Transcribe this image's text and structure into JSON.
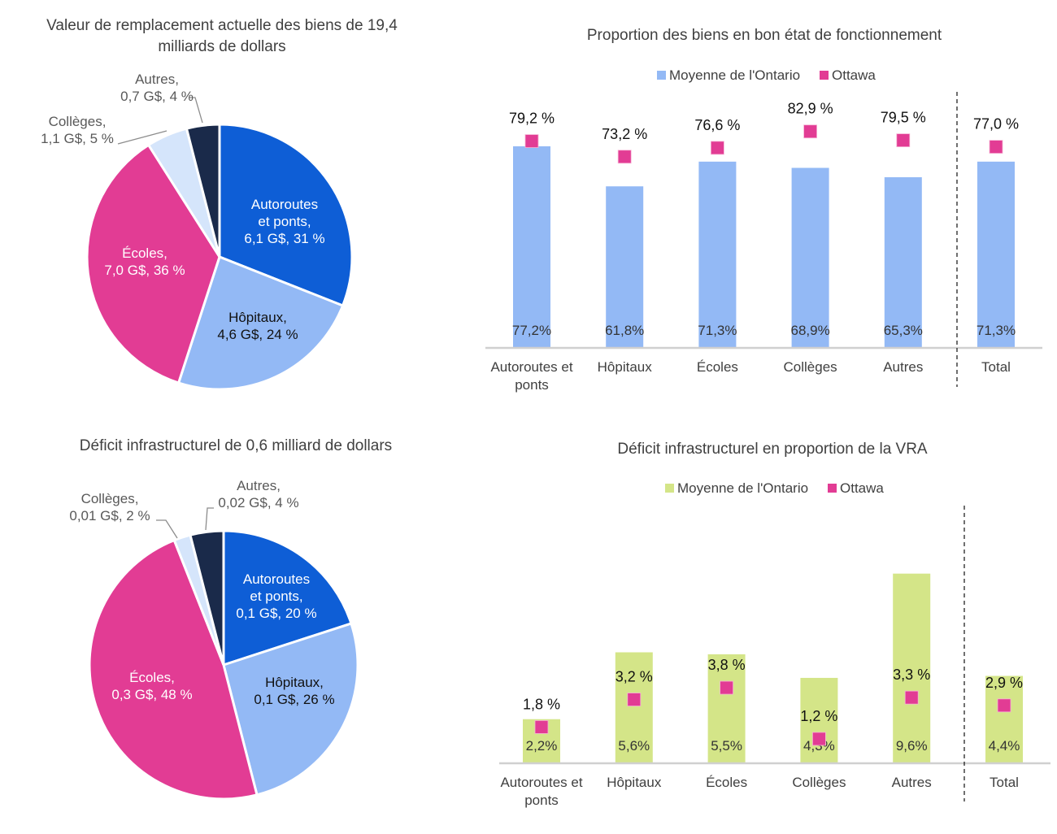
{
  "colors": {
    "autoroutes": "#0e5ed6",
    "hopitaux": "#93b9f5",
    "ecoles": "#e23c94",
    "colleges": "#d5e5fb",
    "autres": "#1a2a4a",
    "ontario_bar_1": "#93b9f5",
    "ontario_bar_2": "#d4e588",
    "ottawa": "#e23c94"
  },
  "chart_data": [
    {
      "type": "pie",
      "title_lines": [
        "Valeur de remplacement actuelle des biens de 19,4",
        "milliards de dollars"
      ],
      "slices": [
        {
          "key": "autoroutes",
          "value": 31,
          "label_lines": [
            "Autoroutes",
            "et ponts,",
            "6,1 G$, 31 %"
          ]
        },
        {
          "key": "hopitaux",
          "value": 24,
          "label_lines": [
            "Hôpitaux,",
            "4,6 G$, 24 %"
          ]
        },
        {
          "key": "ecoles",
          "value": 36,
          "label_lines": [
            "Écoles,",
            "7,0 G$, 36 %"
          ]
        },
        {
          "key": "colleges",
          "value": 5,
          "label_lines": [
            "Collèges,",
            "1,1 G$, 5 %"
          ]
        },
        {
          "key": "autres",
          "value": 4,
          "label_lines": [
            "Autres,",
            "0,7 G$, 4 %"
          ]
        }
      ]
    },
    {
      "type": "bar",
      "title": "Proportion des biens en bon état de fonctionnement",
      "legend": [
        "Moyenne de l'Ontario",
        "Ottawa"
      ],
      "legend_position": "top",
      "categories": [
        [
          "Autoroutes et",
          "ponts"
        ],
        [
          "Hôpitaux"
        ],
        [
          "Écoles"
        ],
        [
          "Collèges"
        ],
        [
          "Autres"
        ],
        [
          "Total"
        ]
      ],
      "series": [
        {
          "name": "Moyenne de l'Ontario",
          "values": [
            77.2,
            61.8,
            71.3,
            68.9,
            65.3,
            71.3
          ],
          "labels": [
            "77,2%",
            "61,8%",
            "71,3%",
            "68,9%",
            "65,3%",
            "71,3%"
          ]
        },
        {
          "name": "Ottawa",
          "values": [
            79.2,
            73.2,
            76.6,
            82.9,
            79.5,
            77.0
          ],
          "labels": [
            "79,2 %",
            "73,2 %",
            "76,6 %",
            "82,9 %",
            "79,5 %",
            "77,0 %"
          ]
        }
      ],
      "grid": false
    },
    {
      "type": "pie",
      "title_lines": [
        "Déficit infrastructurel de 0,6 milliard de dollars"
      ],
      "slices": [
        {
          "key": "autoroutes",
          "value": 20,
          "label_lines": [
            "Autoroutes",
            "et ponts,",
            "0,1 G$, 20 %"
          ]
        },
        {
          "key": "hopitaux",
          "value": 26,
          "label_lines": [
            "Hôpitaux,",
            "0,1 G$, 26 %"
          ]
        },
        {
          "key": "ecoles",
          "value": 48,
          "label_lines": [
            "Écoles,",
            "0,3 G$, 48 %"
          ]
        },
        {
          "key": "colleges",
          "value": 2,
          "label_lines": [
            "Collèges,",
            "0,01 G$, 2 %"
          ]
        },
        {
          "key": "autres",
          "value": 4,
          "label_lines": [
            "Autres,",
            "0,02 G$, 4 %"
          ]
        }
      ]
    },
    {
      "type": "bar",
      "title": "Déficit infrastructurel en proportion de la VRA",
      "legend": [
        "Moyenne de l'Ontario",
        "Ottawa"
      ],
      "legend_position": "top",
      "categories": [
        [
          "Autoroutes et",
          "ponts"
        ],
        [
          "Hôpitaux"
        ],
        [
          "Écoles"
        ],
        [
          "Collèges"
        ],
        [
          "Autres"
        ],
        [
          "Total"
        ]
      ],
      "series": [
        {
          "name": "Moyenne de l'Ontario",
          "values": [
            2.2,
            5.6,
            5.5,
            4.3,
            9.6,
            4.4
          ],
          "labels": [
            "2,2%",
            "5,6%",
            "5,5%",
            "4,3%",
            "9,6%",
            "4,4%"
          ]
        },
        {
          "name": "Ottawa",
          "values": [
            1.8,
            3.2,
            3.8,
            1.2,
            3.3,
            2.9
          ],
          "labels": [
            "1,8 %",
            "3,2 %",
            "3,8 %",
            "1,2 %",
            "3,3 %",
            "2,9 %"
          ]
        }
      ],
      "grid": false
    }
  ]
}
